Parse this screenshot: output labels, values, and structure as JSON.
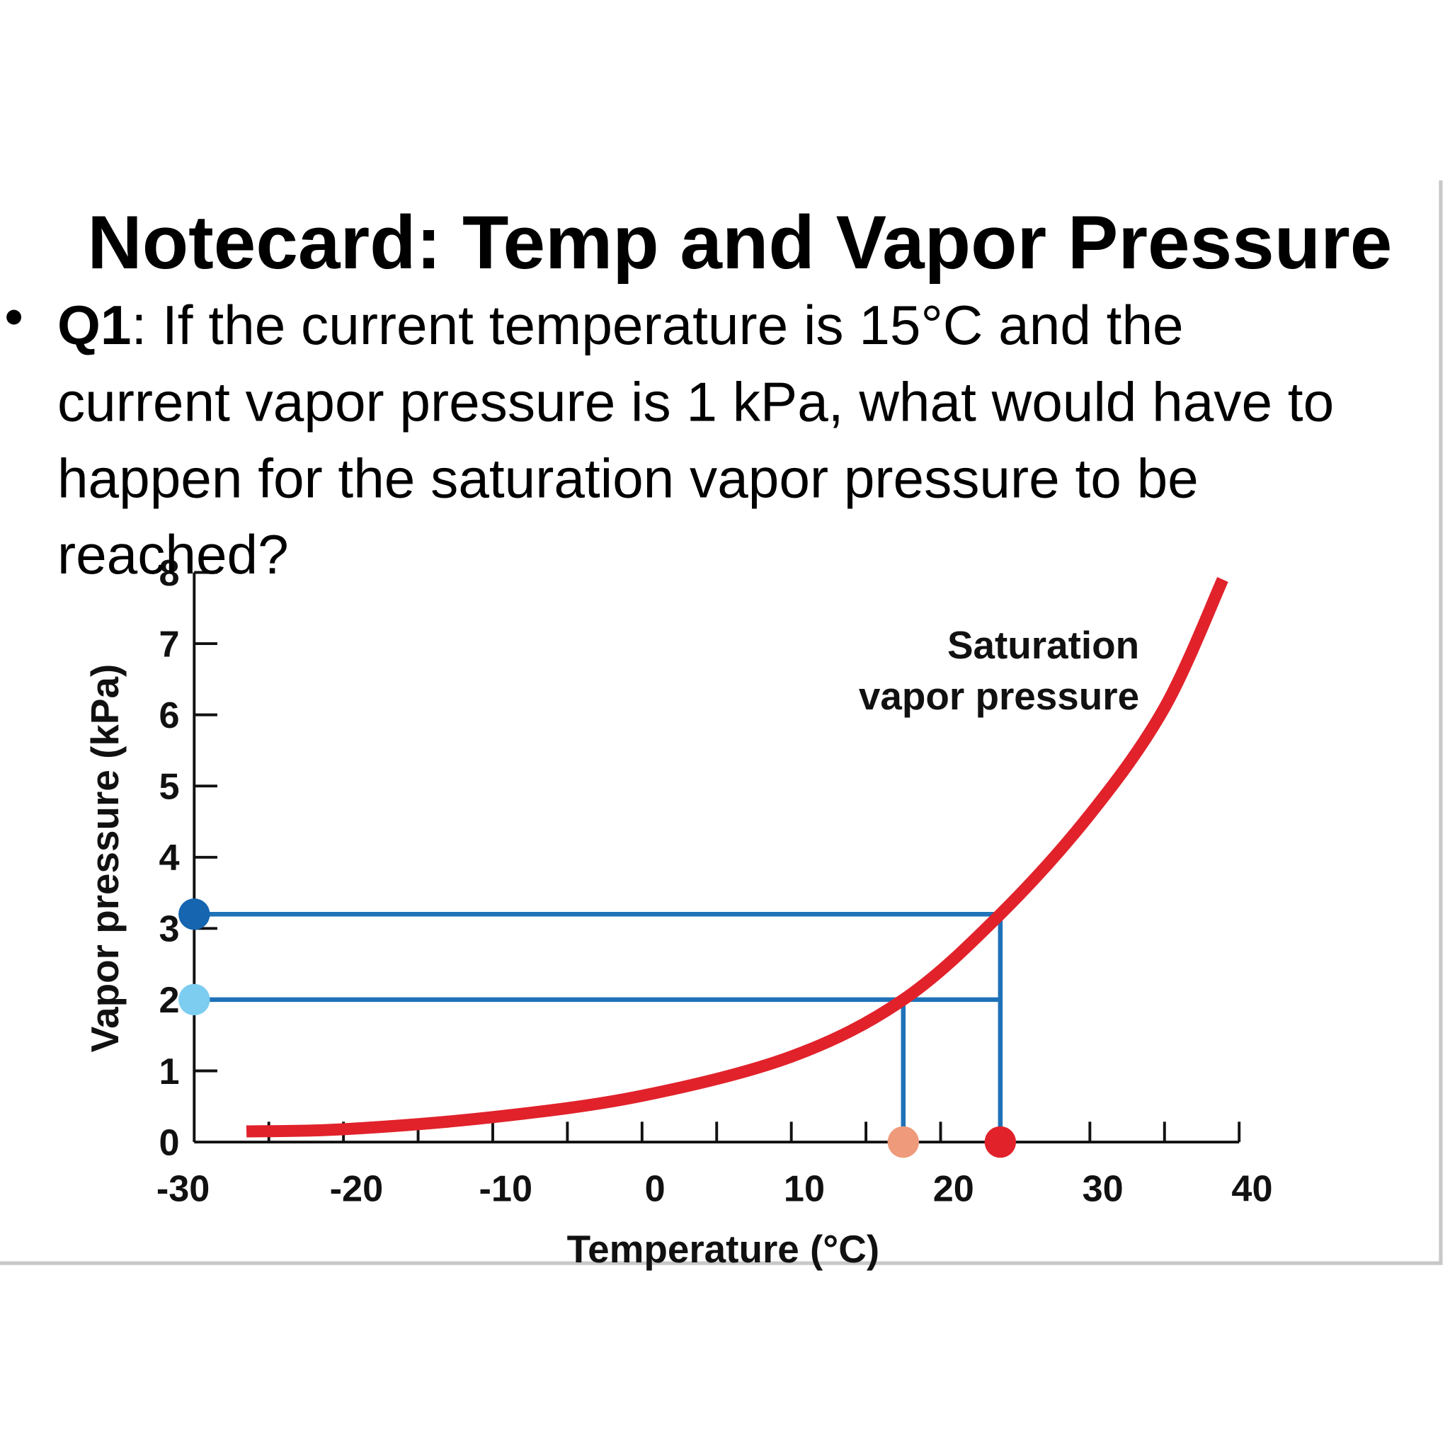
{
  "header": {
    "title": "Notecard: Temp and Vapor Pressure"
  },
  "question": {
    "label": "Q1",
    "lines": [
      ": If the current temperature is 15°C and the",
      "current vapor pressure is 1 kPa, what would have to",
      "happen for the saturation vapor pressure to be",
      "reached?"
    ]
  },
  "chart_data": {
    "type": "line",
    "x_label": "Temperature (°C)",
    "y_label": "Vapor pressure (kPa)",
    "annotation": [
      "Saturation",
      "vapor pressure"
    ],
    "xlim": [
      -30,
      40
    ],
    "ylim": [
      0,
      8
    ],
    "xticks": [
      -30,
      -20,
      -10,
      0,
      10,
      20,
      30,
      40
    ],
    "xminor_ticks": [
      -25,
      -15,
      -5,
      5,
      15,
      35
    ],
    "yticks": [
      0,
      1,
      2,
      3,
      4,
      5,
      6,
      7,
      8
    ],
    "series": [
      {
        "color": "#e1222b",
        "x": [
          -26.5,
          -20,
          -10,
          0,
          10,
          17.5,
          24,
          30,
          35,
          38.9
        ],
        "values": [
          0.15,
          0.18,
          0.35,
          0.65,
          1.2,
          2.0,
          3.2,
          4.6,
          6.1,
          7.9
        ]
      }
    ],
    "hlines": [
      {
        "y": 3.2,
        "x_end": 24,
        "color": "#1f72b8"
      },
      {
        "y": 2.0,
        "x_end": 24,
        "color": "#1f72b8"
      }
    ],
    "vlines": [
      {
        "x": 24,
        "y_end": 3.2,
        "color": "#1f72b8"
      },
      {
        "x": 17.5,
        "y_end": 2.0,
        "color": "#1f72b8"
      }
    ],
    "points": [
      {
        "x": -30,
        "y": 3.2,
        "color": "#1565b0"
      },
      {
        "x": -30,
        "y": 2.0,
        "color": "#7ccdf0"
      },
      {
        "x": 17.5,
        "y": 0,
        "color": "#ef9a7a"
      },
      {
        "x": 24,
        "y": 0,
        "color": "#e1222b"
      }
    ]
  }
}
